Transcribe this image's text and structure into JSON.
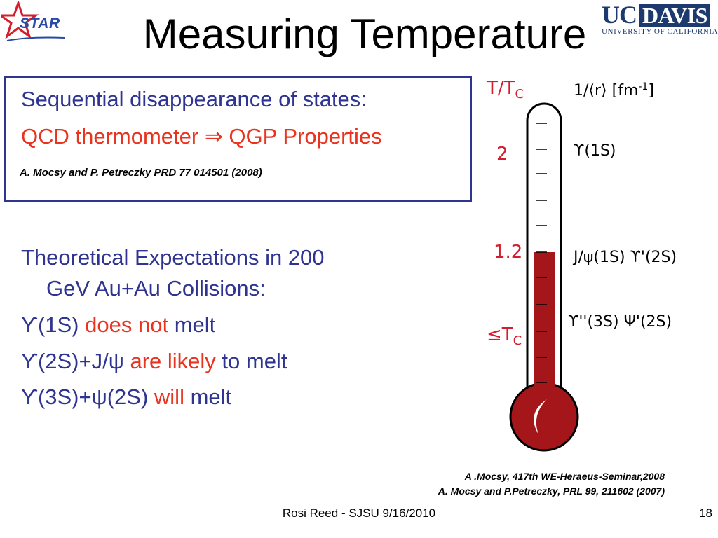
{
  "logo_left": {
    "text": "STAR",
    "star_color": "#d41e2e",
    "text_color": "#2a4aa8"
  },
  "title": "Measuring Temperature",
  "logo_right": {
    "uc": "UC",
    "davis": "DAVIS",
    "line": "UNIVERSITY OF CALIFORNIA",
    "color": "#1d3a6e"
  },
  "box": {
    "line1": "Sequential disappearance of states:",
    "line2": "QCD thermometer ⇒ QGP Properties",
    "citation": "A. Mocsy and P. Petreczky PRD 77 014501 (2008)"
  },
  "expectations": {
    "line1": "Theoretical Expectations in 200",
    "line2": "GeV Au+Au Collisions:"
  },
  "bullets": [
    {
      "state": "ϒ(1S)",
      "emph": "does not",
      "rest": "melt"
    },
    {
      "state": "ϒ(2S)+J/ψ",
      "emph": "are likely",
      "rest": "to melt"
    },
    {
      "state": "ϒ(3S)+ψ(2S)",
      "emph": "will",
      "rest": "melt"
    }
  ],
  "thermometer": {
    "header_left": "T/T",
    "header_left_sub": "C",
    "header_right": "1/⟨r⟩ [fm",
    "header_right_sup": "-1",
    "header_right_close": "]",
    "scale_labels": [
      {
        "text": "2",
        "level": 2.0
      },
      {
        "text": "1.2",
        "level": 1.2
      },
      {
        "text": "≤T",
        "sub": "C",
        "level": 1.0
      }
    ],
    "states": [
      {
        "text": "ϒ(1S)",
        "level": 2.0
      },
      {
        "text": "J/ψ(1S) ϒ'(2S)",
        "level": 1.2
      },
      {
        "text": "ϒ''(3S) Ψ'(2S)",
        "level": 1.0
      }
    ],
    "mercury_color": "#a4161a"
  },
  "references": {
    "ref1": "A .Mocsy, 417th WE-Heraeus-Seminar,2008",
    "ref2": "A. Mocsy and P.Petreczky, PRL  99, 211602 (2007)"
  },
  "footer": {
    "text": "Rosi Reed - SJSU 9/16/2010",
    "page": "18"
  }
}
